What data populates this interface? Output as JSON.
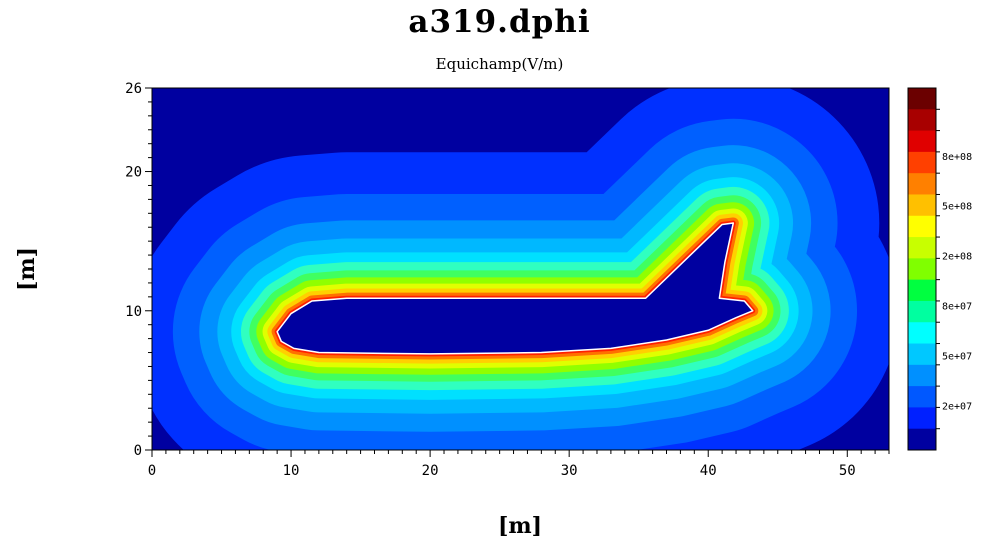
{
  "chart_data": {
    "type": "heatmap",
    "title": "a319.dphi",
    "subtitle": "Equichamp(V/m)",
    "xlabel": "[m]",
    "ylabel": "[m]",
    "xlim": [
      0,
      53
    ],
    "ylim": [
      0,
      26
    ],
    "x_ticks": [
      0,
      10,
      20,
      30,
      40,
      50
    ],
    "y_ticks": [
      0,
      10,
      20,
      26
    ],
    "colorbar": {
      "labels": [
        "8e+08",
        "5e+08",
        "2e+08",
        "8e+07",
        "5e+07",
        "2e+07"
      ],
      "colors": [
        "#6b0000",
        "#a80000",
        "#e00000",
        "#ff4000",
        "#ff8000",
        "#ffc000",
        "#ffff00",
        "#c8ff00",
        "#80ff00",
        "#00ff40",
        "#00ffa0",
        "#00ffff",
        "#00c8ff",
        "#0090ff",
        "#0058ff",
        "#0020ff",
        "#0000a0"
      ]
    },
    "object_outline_m": [
      [
        9,
        8.5
      ],
      [
        10,
        9.8
      ],
      [
        11.5,
        10.7
      ],
      [
        14,
        10.9
      ],
      [
        35.5,
        10.9
      ],
      [
        41,
        16.2
      ],
      [
        41.8,
        16.3
      ],
      [
        41.2,
        13.5
      ],
      [
        40.8,
        10.9
      ],
      [
        42.6,
        10.7
      ],
      [
        43.2,
        10
      ],
      [
        42,
        9.5
      ],
      [
        40,
        8.6
      ],
      [
        37,
        7.9
      ],
      [
        33,
        7.3
      ],
      [
        28,
        7
      ],
      [
        20,
        6.9
      ],
      [
        12,
        7
      ],
      [
        10.2,
        7.3
      ],
      [
        9.3,
        7.8
      ]
    ],
    "contour_levels_m": [
      {
        "color": "#0030ff",
        "distance": 10.5
      },
      {
        "color": "#0060ff",
        "distance": 7.5
      },
      {
        "color": "#0090ff",
        "distance": 5.6
      },
      {
        "color": "#00b8ff",
        "distance": 4.3
      },
      {
        "color": "#00e0ff",
        "distance": 3.3
      },
      {
        "color": "#30ffc0",
        "distance": 2.6
      },
      {
        "color": "#40ff60",
        "distance": 2.0
      },
      {
        "color": "#90ff00",
        "distance": 1.5
      },
      {
        "color": "#e0ff00",
        "distance": 1.05
      },
      {
        "color": "#ffd000",
        "distance": 0.7
      },
      {
        "color": "#ff7000",
        "distance": 0.4
      },
      {
        "color": "#ff2000",
        "distance": 0.18
      }
    ],
    "background_color": "#0000a0",
    "object_color": "#0000a0"
  }
}
